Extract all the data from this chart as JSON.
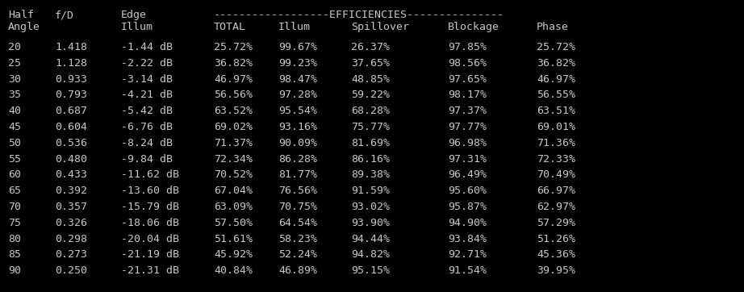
{
  "background_color": "#000000",
  "text_color": "#c8c8c8",
  "font_family": "monospace",
  "rows": [
    [
      "20",
      "1.418",
      "-1.44 dB",
      "25.72%",
      "99.67%",
      "26.37%",
      "97.85%",
      "25.72%"
    ],
    [
      "25",
      "1.128",
      "-2.22 dB",
      "36.82%",
      "99.23%",
      "37.65%",
      "98.56%",
      "36.82%"
    ],
    [
      "30",
      "0.933",
      "-3.14 dB",
      "46.97%",
      "98.47%",
      "48.85%",
      "97.65%",
      "46.97%"
    ],
    [
      "35",
      "0.793",
      "-4.21 dB",
      "56.56%",
      "97.28%",
      "59.22%",
      "98.17%",
      "56.55%"
    ],
    [
      "40",
      "0.687",
      "-5.42 dB",
      "63.52%",
      "95.54%",
      "68.28%",
      "97.37%",
      "63.51%"
    ],
    [
      "45",
      "0.604",
      "-6.76 dB",
      "69.02%",
      "93.16%",
      "75.77%",
      "97.77%",
      "69.01%"
    ],
    [
      "50",
      "0.536",
      "-8.24 dB",
      "71.37%",
      "90.09%",
      "81.69%",
      "96.98%",
      "71.36%"
    ],
    [
      "55",
      "0.480",
      "-9.84 dB",
      "72.34%",
      "86.28%",
      "86.16%",
      "97.31%",
      "72.33%"
    ],
    [
      "60",
      "0.433",
      "-11.62 dB",
      "70.52%",
      "81.77%",
      "89.38%",
      "96.49%",
      "70.49%"
    ],
    [
      "65",
      "0.392",
      "-13.60 dB",
      "67.04%",
      "76.56%",
      "91.59%",
      "95.60%",
      "66.97%"
    ],
    [
      "70",
      "0.357",
      "-15.79 dB",
      "63.09%",
      "70.75%",
      "93.02%",
      "95.87%",
      "62.97%"
    ],
    [
      "75",
      "0.326",
      "-18.06 dB",
      "57.50%",
      "64.54%",
      "93.90%",
      "94.90%",
      "57.29%"
    ],
    [
      "80",
      "0.298",
      "-20.04 dB",
      "51.61%",
      "58.23%",
      "94.44%",
      "93.84%",
      "51.26%"
    ],
    [
      "85",
      "0.273",
      "-21.19 dB",
      "45.92%",
      "52.24%",
      "94.82%",
      "92.71%",
      "45.36%"
    ],
    [
      "90",
      "0.250",
      "-21.31 dB",
      "40.84%",
      "46.89%",
      "95.15%",
      "91.54%",
      "39.95%"
    ]
  ],
  "figsize": [
    9.22,
    3.62
  ],
  "dpi": 100
}
